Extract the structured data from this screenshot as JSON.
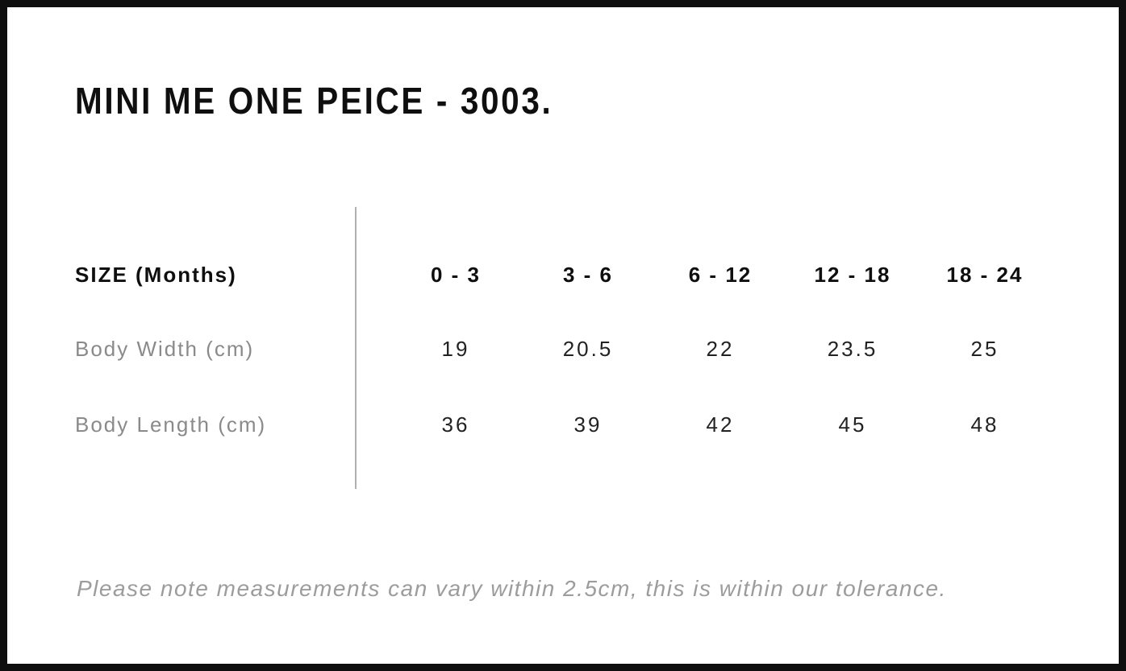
{
  "title": "MINI ME ONE PEICE - 3003.",
  "table": {
    "header_label": "SIZE (Months)",
    "columns": [
      "0 - 3",
      "3 - 6",
      "6 - 12",
      "12 - 18",
      "18 - 24"
    ],
    "rows": [
      {
        "label": "Body Width (cm)",
        "values": [
          "19",
          "20.5",
          "22",
          "23.5",
          "25"
        ]
      },
      {
        "label": "Body Length (cm)",
        "values": [
          "36",
          "39",
          "42",
          "45",
          "48"
        ]
      }
    ]
  },
  "note": "Please note measurements can vary within 2.5cm, this is within our tolerance.",
  "colors": {
    "border": "#0f0f0f",
    "text_primary": "#0f0f0f",
    "text_secondary": "#8a8a8a",
    "divider": "#b0b0b0",
    "note": "#9c9c9c"
  },
  "chart_data": {
    "type": "table",
    "title": "MINI ME ONE PEICE - 3003.",
    "columns": [
      "SIZE (Months)",
      "0 - 3",
      "3 - 6",
      "6 - 12",
      "12 - 18",
      "18 - 24"
    ],
    "rows": [
      [
        "Body Width (cm)",
        19,
        20.5,
        22,
        23.5,
        25
      ],
      [
        "Body Length (cm)",
        36,
        39,
        42,
        45,
        48
      ]
    ],
    "footnote": "Please note measurements can vary within 2.5cm, this is within our tolerance.",
    "layout": {
      "grid": "off",
      "row_divider": "single vertical line between label column and value columns"
    }
  }
}
